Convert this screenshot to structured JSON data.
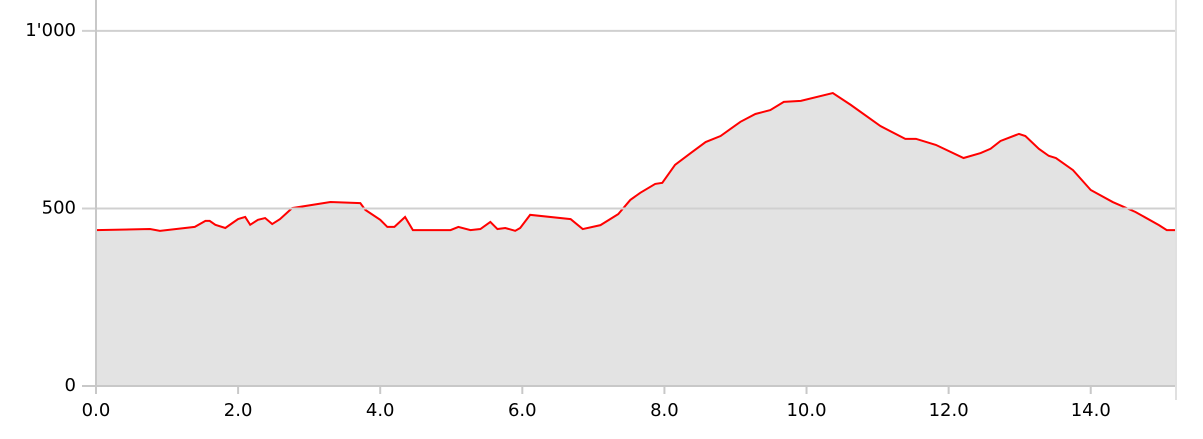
{
  "chart_data": {
    "type": "area",
    "x": [
      0,
      0.76,
      0.9,
      1.39,
      1.54,
      1.6,
      1.68,
      1.82,
      1.92,
      2.0,
      2.1,
      2.17,
      2.28,
      2.38,
      2.48,
      2.59,
      2.76,
      3.3,
      3.72,
      3.79,
      4.0,
      4.1,
      4.2,
      4.35,
      4.46,
      4.63,
      4.99,
      5.1,
      5.27,
      5.41,
      5.55,
      5.65,
      5.76,
      5.9,
      5.97,
      6.11,
      6.68,
      6.85,
      7.1,
      7.35,
      7.52,
      7.66,
      7.87,
      7.97,
      8.15,
      8.37,
      8.58,
      8.79,
      9.07,
      9.28,
      9.49,
      9.68,
      9.92,
      10.37,
      10.62,
      11.04,
      11.39,
      11.54,
      11.82,
      12.21,
      12.45,
      12.59,
      12.73,
      12.99,
      13.08,
      13.27,
      13.41,
      13.51,
      13.75,
      14.0,
      14.31,
      14.63,
      14.96,
      15.07,
      15.2
    ],
    "series": [
      {
        "color": "#ff0000",
        "fill": "#e3e3e3",
        "values": [
          439,
          442,
          437,
          448,
          465,
          465,
          454,
          445,
          459,
          470,
          476,
          454,
          468,
          473,
          456,
          470,
          501,
          518,
          515,
          496,
          468,
          448,
          448,
          476,
          439,
          439,
          439,
          448,
          439,
          442,
          462,
          442,
          445,
          437,
          445,
          482,
          470,
          442,
          453,
          484,
          524,
          544,
          569,
          572,
          623,
          656,
          687,
          704,
          744,
          766,
          777,
          800,
          803,
          825,
          792,
          732,
          696,
          696,
          679,
          642,
          656,
          668,
          690,
          710,
          704,
          668,
          648,
          642,
          608,
          552,
          518,
          490,
          453,
          439,
          439
        ]
      }
    ],
    "xlim": [
      0,
      15.2
    ],
    "ylim": [
      0,
      1087
    ],
    "xticks": [
      {
        "value": 0,
        "label": "0.0"
      },
      {
        "value": 2,
        "label": "2.0"
      },
      {
        "value": 4,
        "label": "4.0"
      },
      {
        "value": 6,
        "label": "6.0"
      },
      {
        "value": 8,
        "label": "8.0"
      },
      {
        "value": 10,
        "label": "10.0"
      },
      {
        "value": 12,
        "label": "12.0"
      },
      {
        "value": 14,
        "label": "14.0"
      }
    ],
    "yticks": [
      0,
      500,
      {
        "value": 1000,
        "label": "1'000"
      }
    ],
    "grid": true
  }
}
